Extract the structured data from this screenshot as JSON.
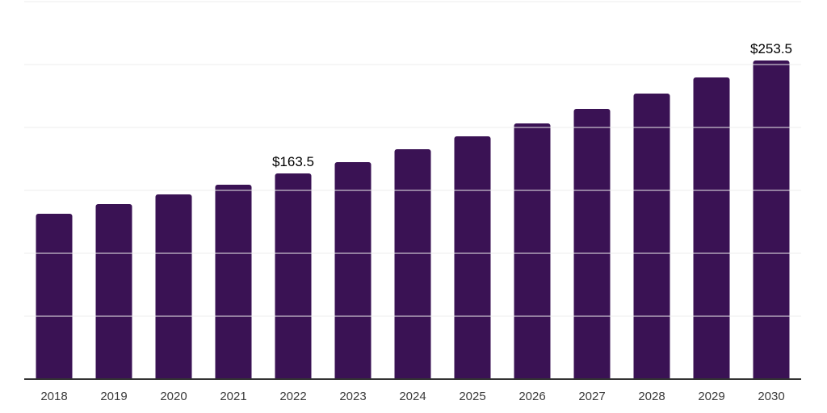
{
  "chart_data": {
    "type": "bar",
    "categories": [
      "2018",
      "2019",
      "2020",
      "2021",
      "2022",
      "2023",
      "2024",
      "2025",
      "2026",
      "2027",
      "2028",
      "2029",
      "2030"
    ],
    "values": [
      131.4,
      138.8,
      146.6,
      154.8,
      163.5,
      172.7,
      182.4,
      192.7,
      203.5,
      215.0,
      227.1,
      239.9,
      253.5
    ],
    "data_labels": [
      {
        "category": "2022",
        "text": "$163.5"
      },
      {
        "category": "2030",
        "text": "$253.5"
      }
    ],
    "ylim": [
      0,
      300
    ],
    "grid_step": 50,
    "grid": true,
    "legend": false,
    "y_axis_labels_visible": false,
    "colors": {
      "bar": "#3a1254",
      "gridline": "#ececec",
      "axis_line": "#333333",
      "x_tick_label": "#3a3a3a",
      "data_label": "#000000",
      "background": "#ffffff"
    }
  }
}
